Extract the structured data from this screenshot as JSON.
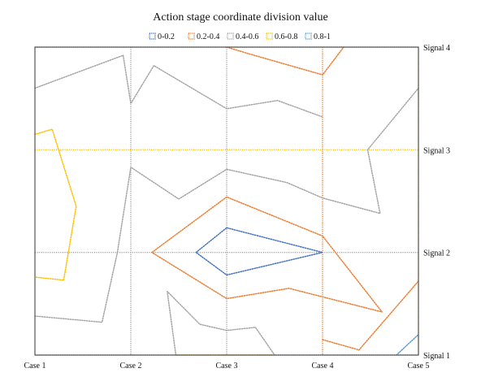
{
  "chart_data": {
    "type": "contour",
    "title": "Action stage coordinate division value",
    "x_categories": [
      "Case 1",
      "Case 2",
      "Case 3",
      "Case 4",
      "Case 5"
    ],
    "y_categories": [
      "Signal 1",
      "Signal 2",
      "Signal 3",
      "Signal 4"
    ],
    "xlim": [
      1,
      5
    ],
    "ylim": [
      1,
      4
    ],
    "legend_position": "top",
    "levels": [
      {
        "label": "0-0.2",
        "color": "#4472c4"
      },
      {
        "label": "0.2-0.4",
        "color": "#ed7d31"
      },
      {
        "label": "0.4-0.6",
        "color": "#a5a5a5"
      },
      {
        "label": "0.6-0.8",
        "color": "#ffc000"
      },
      {
        "label": "0.8-1",
        "color": "#5b9bd5"
      }
    ],
    "grid": {
      "vertical": [
        {
          "x": 2,
          "color": "#a5a5a5"
        },
        {
          "x": 3,
          "color": "#a5a5a5"
        },
        {
          "x": 4,
          "color": "#ed7d31"
        },
        {
          "x": 5,
          "color": "#ffc000"
        }
      ],
      "horizontal": [
        {
          "y": 1,
          "color": "#a5a5a5"
        },
        {
          "y": 2,
          "color": "#a5a5a5"
        },
        {
          "y": 3,
          "color": "#ffc000"
        },
        {
          "y": 4,
          "color": "#a5a5a5"
        }
      ]
    },
    "contours": [
      {
        "level": "0-0.2",
        "points": [
          [
            2.68,
            2.0
          ],
          [
            3.0,
            2.24
          ],
          [
            4.0,
            2.0
          ],
          [
            3.0,
            1.78
          ],
          [
            2.68,
            2.0
          ]
        ]
      },
      {
        "level": "0.2-0.4",
        "points": [
          [
            2.22,
            2.0
          ],
          [
            3.0,
            2.54
          ],
          [
            4.0,
            2.16
          ],
          [
            4.62,
            1.42
          ],
          [
            3.65,
            1.65
          ],
          [
            3.0,
            1.55
          ],
          [
            2.22,
            2.0
          ]
        ]
      },
      {
        "level": "0.2-0.4",
        "points": [
          [
            3.0,
            4.0
          ],
          [
            3.25,
            3.93
          ],
          [
            4.0,
            3.73
          ],
          [
            4.22,
            4.0
          ]
        ]
      },
      {
        "level": "0.2-0.4",
        "points": [
          [
            4.0,
            1.15
          ],
          [
            4.38,
            1.05
          ],
          [
            5.0,
            1.72
          ]
        ]
      },
      {
        "level": "0.4-0.6",
        "points": [
          [
            1.0,
            3.6
          ],
          [
            1.92,
            3.92
          ],
          [
            2.0,
            3.45
          ],
          [
            2.24,
            3.82
          ],
          [
            3.0,
            3.4
          ],
          [
            3.53,
            3.48
          ],
          [
            4.0,
            3.32
          ]
        ]
      },
      {
        "level": "0.4-0.6",
        "points": [
          [
            1.0,
            1.38
          ],
          [
            1.7,
            1.32
          ],
          [
            1.86,
            2.0
          ],
          [
            2.0,
            2.83
          ],
          [
            2.5,
            2.52
          ],
          [
            3.0,
            2.81
          ],
          [
            3.63,
            2.68
          ],
          [
            4.0,
            2.53
          ],
          [
            4.6,
            2.38
          ],
          [
            4.47,
            3.0
          ],
          [
            5.0,
            3.6
          ]
        ]
      },
      {
        "level": "0.4-0.6",
        "points": [
          [
            2.47,
            1.0
          ],
          [
            2.38,
            1.62
          ],
          [
            2.72,
            1.3
          ],
          [
            3.0,
            1.24
          ],
          [
            3.3,
            1.27
          ],
          [
            3.5,
            1.0
          ]
        ]
      },
      {
        "level": "0.6-0.8",
        "points": [
          [
            1.0,
            3.15
          ],
          [
            1.18,
            3.2
          ],
          [
            1.43,
            2.45
          ],
          [
            1.3,
            1.73
          ],
          [
            1.0,
            1.76
          ]
        ]
      },
      {
        "level": "0.6-0.8",
        "points": [
          [
            2.48,
            1.0
          ],
          [
            3.5,
            1.0
          ]
        ]
      },
      {
        "level": "0.8-1",
        "points": [
          [
            4.77,
            1.0
          ],
          [
            5.0,
            1.2
          ]
        ]
      }
    ]
  }
}
